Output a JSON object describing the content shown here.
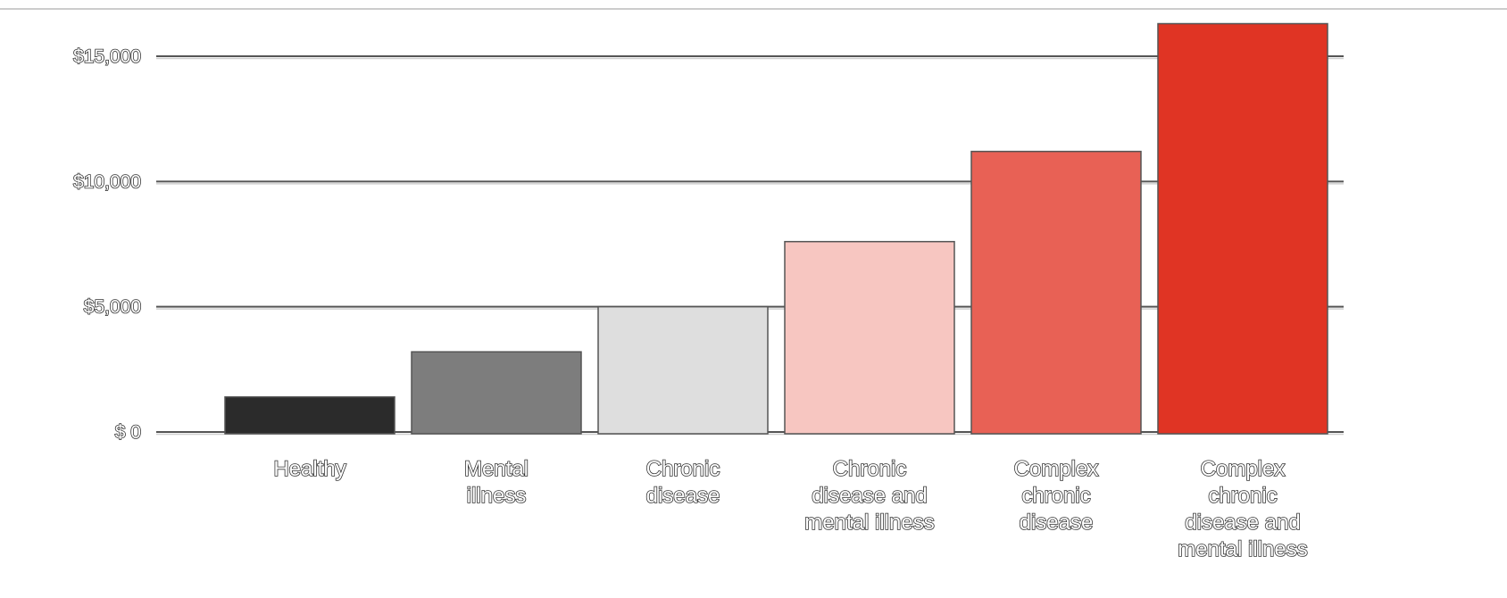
{
  "chart_data": {
    "type": "bar",
    "categories": [
      "Healthy",
      "Mental illness",
      "Chronic disease",
      "Chronic disease and mental illness",
      "Complex chronic disease",
      "Complex chronic disease and mental illness"
    ],
    "category_lines": [
      [
        "Healthy"
      ],
      [
        "Mental",
        "illness"
      ],
      [
        "Chronic",
        "disease"
      ],
      [
        "Chronic",
        "disease and",
        "mental illness"
      ],
      [
        "Complex",
        "chronic",
        "disease"
      ],
      [
        "Complex",
        "chronic",
        "disease and",
        "mental illness"
      ]
    ],
    "values": [
      1400,
      3200,
      5000,
      7600,
      11200,
      16300
    ],
    "colors": [
      "#2b2b2b",
      "#7d7d7d",
      "#dedede",
      "#f7c6c1",
      "#e86155",
      "#e03424"
    ],
    "ylim": [
      0,
      16300
    ],
    "yticks": [
      0,
      5000,
      10000,
      15000
    ],
    "ytick_labels": [
      "$ 0",
      "$5,000",
      "$10,000",
      "$15,000"
    ],
    "grid": true,
    "title": "",
    "xlabel": "",
    "ylabel": ""
  }
}
